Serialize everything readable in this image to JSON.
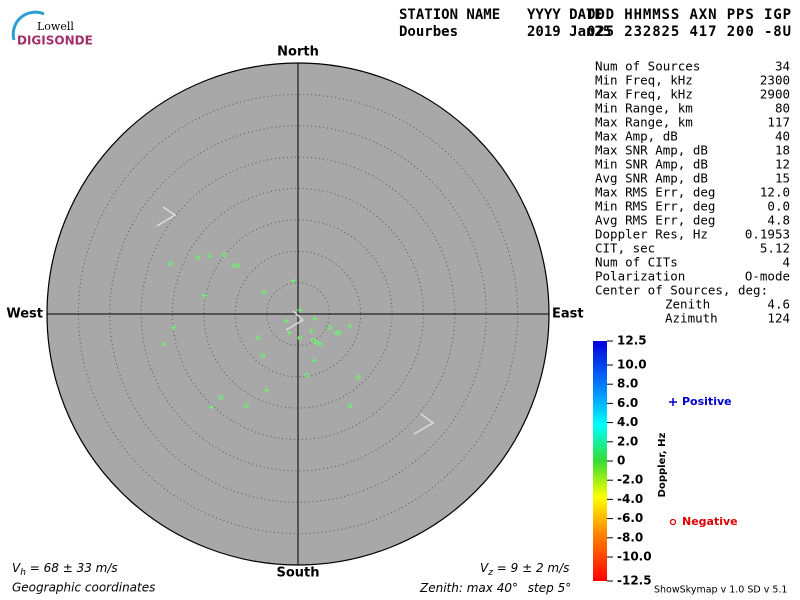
{
  "header": {
    "logo_top": "Lowell",
    "logo_bottom": "DIGISONDE",
    "columns": [
      {
        "label": "STATION NAME",
        "value": "Dourbes"
      },
      {
        "label": "YYYY DATE",
        "value": "2019 Jan25"
      },
      {
        "label": "DDD HHMMSS AXN PPS IGP",
        "value": "025 232825 417 200 -8U"
      }
    ]
  },
  "stats": {
    "rows": [
      [
        "Num of Sources",
        "34"
      ],
      [
        "Min Freq, kHz",
        "2300"
      ],
      [
        "Max Freq, kHz",
        "2900"
      ],
      [
        "Min Range, km",
        "80"
      ],
      [
        "Max Range, km",
        "117"
      ],
      [
        "Max Amp, dB",
        "40"
      ],
      [
        "Max SNR Amp, dB",
        "18"
      ],
      [
        "Min SNR Amp, dB",
        "12"
      ],
      [
        "Avg SNR Amp, dB",
        "15"
      ],
      [
        "Max RMS Err, deg",
        "12.0"
      ],
      [
        "Min RMS Err, deg",
        "0.0"
      ],
      [
        "Avg RMS Err, deg",
        "4.8"
      ],
      [
        "Doppler Res, Hz",
        "0.1953"
      ],
      [
        "CIT, sec",
        "5.12"
      ],
      [
        "Num of CITs",
        "4"
      ],
      [
        "Polarization",
        "O-mode"
      ]
    ],
    "center_title": "Center of Sources, deg:",
    "center_rows": [
      [
        "Zenith",
        "4.6"
      ],
      [
        "Azimuth",
        "124"
      ]
    ]
  },
  "chart_data": {
    "type": "skymap",
    "compass": {
      "north": "North",
      "south": "South",
      "west": "West",
      "east": "East"
    },
    "rlim": [
      0,
      40
    ],
    "rticks": [
      5,
      10,
      15,
      20,
      25,
      30,
      35
    ],
    "rstep": 5,
    "series": [
      {
        "name": "Positive",
        "marker": "plus",
        "legend_color": "#0000cc",
        "color": "#66ff66",
        "x": [
          -10.2,
          -0.8,
          -14.9,
          0.3,
          2.7,
          -19.8,
          -21.3,
          -1.4,
          2.1,
          6.1,
          8.3,
          2.6,
          -5.0,
          -13.8,
          -1.8
        ],
        "y": [
          7.7,
          5.3,
          2.9,
          0.6,
          -0.8,
          -2.2,
          -4.8,
          -3.0,
          -2.7,
          -3.0,
          -1.9,
          -7.4,
          -12.2,
          -14.9,
          -1.1
        ]
      },
      {
        "name": "Negative",
        "marker": "circle",
        "legend_color": "#dd0000",
        "color": "#66ff66",
        "x": [
          -20.3,
          -16.0,
          -14.1,
          -11.8,
          -9.6,
          -5.4,
          -6.4,
          0.3,
          2.4,
          3.0,
          3.5,
          5.1,
          6.6,
          -5.6,
          1.4,
          9.6,
          -12.3,
          -8.2,
          8.3
        ],
        "y": [
          8.0,
          9.0,
          9.3,
          9.4,
          7.7,
          3.4,
          -3.8,
          -3.8,
          -4.2,
          -4.5,
          -4.8,
          -2.2,
          -3.0,
          -6.6,
          -9.8,
          -10.1,
          -13.3,
          -14.6,
          -14.6
        ]
      }
    ],
    "colorbar": {
      "title": "Doppler, Hz",
      "clim": [
        -12.5,
        12.5
      ],
      "ticks": [
        12.5,
        {
          "value": 10,
          "label": "10.0"
        },
        {
          "value": 8,
          "label": "8.0"
        },
        {
          "value": 6,
          "label": "6.0"
        },
        {
          "value": 4,
          "label": "4.0"
        },
        {
          "value": 2,
          "label": "2.0"
        },
        0,
        {
          "value": -2,
          "label": "-2.0"
        },
        {
          "value": -4,
          "label": "-4.0"
        },
        {
          "value": -6,
          "label": "-6.0"
        },
        {
          "value": -8,
          "label": "-8.0"
        },
        {
          "value": -10,
          "label": "-10.0"
        },
        -12.5
      ]
    },
    "footer": {
      "vh": {
        "symbol": "V",
        "sub": "h",
        "rest": " = 68 ± 33 m/s"
      },
      "vz": {
        "symbol": "V",
        "sub": "z",
        "rest": " = 9 ± 2 m/s"
      },
      "coords": "Geographic coordinates",
      "zenith_prefix": "Zenith: max",
      "deg": "°",
      "step_prefix": "step",
      "version": "ShowSkymap v 1.0  SD v 5.1"
    }
  }
}
